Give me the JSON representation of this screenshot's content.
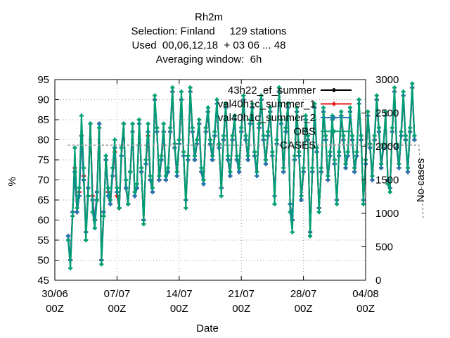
{
  "chart_data": {
    "type": "line",
    "title": "Rh2m",
    "subtitle_lines": [
      "Selection: Finland     129 stations",
      "Used  00,06,12,18  + 03 06 ... 48",
      "Averaging window:  6h"
    ],
    "xlabel": "Date",
    "ylabel": "%",
    "y2label": "No cases",
    "ylim": [
      45,
      95
    ],
    "y_ticks": [
      45,
      50,
      55,
      60,
      65,
      70,
      75,
      80,
      85,
      90,
      95
    ],
    "y2lim": [
      0,
      3000
    ],
    "y2_ticks": [
      0,
      500,
      1000,
      1500,
      2000,
      2500,
      3000
    ],
    "xlim": [
      "2023-06-30 00:00",
      "2023-08-04 00:00"
    ],
    "x_ticks": [
      {
        "label": "30/06",
        "sub": "00Z"
      },
      {
        "label": "07/07",
        "sub": "00Z"
      },
      {
        "label": "14/07",
        "sub": "00Z"
      },
      {
        "label": "21/07",
        "sub": "00Z"
      },
      {
        "label": "28/07",
        "sub": "00Z"
      },
      {
        "label": "04/08",
        "sub": "00Z"
      }
    ],
    "x_start": "2023-07-01 12:00",
    "x_step_hours": 6,
    "legend_position": "top-right",
    "grid": true,
    "series": [
      {
        "name": "43h22_ef_summer",
        "color": "#000000",
        "values": [
          56,
          50,
          62,
          72,
          62,
          66,
          81,
          70,
          57,
          68,
          84,
          65,
          60,
          67,
          84,
          50,
          62,
          75,
          66,
          64,
          71,
          78,
          67,
          63,
          76,
          84,
          68,
          64,
          72,
          82,
          66,
          68,
          84,
          72,
          60,
          74,
          82,
          70,
          67,
          90,
          82,
          70,
          75,
          82,
          70,
          72,
          82,
          92,
          78,
          71,
          79,
          90,
          76,
          65,
          75,
          92,
          82,
          75,
          79,
          84,
          72,
          69,
          82,
          87,
          79,
          75,
          81,
          89,
          78,
          68,
          80,
          88,
          75,
          71,
          80,
          85,
          75,
          72,
          82,
          90,
          80,
          75,
          84,
          88,
          76,
          71,
          83,
          90,
          80,
          74,
          81,
          87,
          76,
          66,
          79,
          92,
          84,
          72,
          82,
          88,
          64,
          60,
          75,
          87,
          76,
          65,
          72,
          85,
          80,
          57,
          72,
          88,
          77,
          63,
          72,
          87,
          80,
          70,
          76,
          85,
          74,
          65,
          76,
          86,
          80,
          73,
          76,
          87,
          80,
          72,
          76,
          89,
          80,
          65,
          74,
          86,
          78,
          70,
          80,
          90,
          82,
          73,
          78,
          86,
          70,
          68,
          82,
          92,
          78,
          73,
          81,
          91,
          80,
          72,
          82,
          93,
          80
        ]
      },
      {
        "name": "val40h1c_summer_1",
        "color": "#e41a1c",
        "values": [
          56,
          50,
          62,
          73,
          62,
          67,
          81,
          71,
          57,
          68,
          84,
          66,
          60,
          67,
          84,
          50,
          62,
          75,
          67,
          64,
          71,
          77,
          66,
          63,
          76,
          84,
          68,
          64,
          72,
          82,
          66,
          68,
          84,
          72,
          60,
          74,
          81,
          70,
          67,
          90,
          82,
          70,
          75,
          82,
          70,
          72,
          82,
          92,
          78,
          71,
          79,
          90,
          76,
          65,
          75,
          92,
          82,
          75,
          79,
          84,
          72,
          69,
          82,
          87,
          79,
          75,
          81,
          89,
          78,
          68,
          80,
          88,
          75,
          71,
          80,
          85,
          75,
          72,
          82,
          90,
          80,
          75,
          84,
          88,
          76,
          71,
          83,
          90,
          80,
          74,
          81,
          87,
          76,
          66,
          79,
          92,
          84,
          72,
          82,
          88,
          64,
          60,
          75,
          87,
          76,
          65,
          72,
          85,
          80,
          57,
          72,
          88,
          77,
          63,
          72,
          87,
          80,
          70,
          76,
          85,
          74,
          65,
          76,
          86,
          80,
          73,
          76,
          87,
          80,
          72,
          76,
          89,
          80,
          65,
          74,
          86,
          78,
          70,
          80,
          90,
          82,
          73,
          78,
          86,
          70,
          68,
          82,
          92,
          78,
          73,
          81,
          91,
          80,
          72,
          82,
          93,
          80
        ]
      },
      {
        "name": "val40h1c_summer_2",
        "color": "#1f78b4",
        "values": [
          56,
          50,
          62,
          72,
          62,
          66,
          81,
          70,
          57,
          68,
          84,
          65,
          60,
          67,
          84,
          50,
          62,
          75,
          66,
          64,
          71,
          78,
          67,
          63,
          76,
          84,
          68,
          64,
          72,
          82,
          66,
          68,
          84,
          72,
          60,
          74,
          82,
          70,
          67,
          90,
          82,
          70,
          75,
          82,
          70,
          72,
          82,
          92,
          78,
          71,
          79,
          90,
          76,
          65,
          75,
          92,
          82,
          75,
          79,
          84,
          72,
          69,
          82,
          87,
          79,
          75,
          81,
          89,
          78,
          68,
          80,
          88,
          75,
          71,
          80,
          85,
          75,
          72,
          82,
          90,
          80,
          75,
          84,
          88,
          76,
          71,
          83,
          90,
          80,
          74,
          81,
          87,
          76,
          66,
          79,
          92,
          84,
          72,
          82,
          88,
          64,
          60,
          75,
          87,
          76,
          65,
          72,
          85,
          80,
          57,
          72,
          88,
          77,
          63,
          72,
          87,
          80,
          70,
          76,
          85,
          74,
          65,
          76,
          86,
          80,
          73,
          76,
          87,
          80,
          72,
          76,
          89,
          80,
          65,
          74,
          86,
          78,
          70,
          80,
          90,
          82,
          73,
          78,
          86,
          70,
          68,
          82,
          92,
          78,
          73,
          81,
          91,
          80,
          72,
          82,
          93,
          80
        ]
      },
      {
        "name": "OBS",
        "color": "#009e73",
        "values": [
          55,
          48,
          61,
          78,
          63,
          68,
          86,
          73,
          55,
          66,
          84,
          62,
          58,
          65,
          83,
          49,
          61,
          76,
          68,
          65,
          73,
          80,
          68,
          63,
          78,
          84,
          70,
          64,
          72,
          84,
          67,
          69,
          85,
          73,
          59,
          75,
          84,
          71,
          68,
          91,
          83,
          71,
          76,
          84,
          71,
          73,
          83,
          93,
          79,
          72,
          80,
          92,
          77,
          63,
          76,
          93,
          83,
          76,
          80,
          85,
          73,
          70,
          83,
          88,
          80,
          76,
          82,
          90,
          79,
          66,
          81,
          89,
          76,
          72,
          81,
          86,
          76,
          73,
          83,
          91,
          81,
          76,
          85,
          89,
          77,
          72,
          84,
          91,
          81,
          75,
          82,
          88,
          77,
          64,
          80,
          93,
          85,
          73,
          83,
          89,
          62,
          57,
          76,
          88,
          77,
          66,
          73,
          86,
          81,
          56,
          73,
          89,
          78,
          62,
          73,
          88,
          81,
          71,
          77,
          86,
          75,
          64,
          77,
          87,
          81,
          74,
          77,
          88,
          81,
          73,
          77,
          90,
          81,
          64,
          75,
          87,
          79,
          71,
          81,
          91,
          83,
          74,
          79,
          87,
          69,
          67,
          83,
          93,
          79,
          74,
          82,
          92,
          81,
          73,
          83,
          94,
          81
        ]
      },
      {
        "name": "CASES",
        "color": "#999999",
        "axis": "y2",
        "dashed": true,
        "values": [
          2020,
          2020,
          2020,
          2020,
          2020,
          2020,
          2020,
          2020,
          2020,
          2020,
          2020,
          2020,
          2020,
          2020,
          2020,
          2020,
          2020,
          2020,
          2020,
          2020,
          2020,
          2020,
          2020,
          2020,
          2020,
          2020,
          2020,
          2020,
          2020,
          2020,
          2020,
          2020,
          2020,
          2020,
          2020,
          2020,
          2020,
          2020,
          2020,
          2020,
          2020,
          2020,
          2020,
          2020,
          2020,
          2020,
          2020,
          2020,
          2020,
          2020,
          2020,
          2020,
          2020,
          2020,
          2020,
          2020,
          2020,
          2020,
          2020,
          2020,
          2020,
          2020,
          2020,
          2020,
          2020,
          2020,
          2020,
          2020,
          2020,
          2020,
          2020,
          2020,
          2020,
          2020,
          2020,
          2020,
          2020,
          2020,
          2020,
          2020,
          2020,
          2020,
          2020,
          2020,
          2020,
          2020,
          2020,
          2020,
          2020,
          2020,
          2020,
          2020,
          2020,
          2020,
          2020,
          2020,
          2020,
          2020,
          2020,
          2020,
          2020,
          2020,
          2020,
          2020,
          2020,
          2020,
          2020,
          2020,
          2020,
          2020,
          2020,
          2020,
          2020,
          2020,
          2020,
          2020,
          2020,
          2020,
          2020,
          2020,
          2020,
          2020,
          2020,
          2020,
          2020,
          2020,
          2020,
          2020,
          2020,
          2020,
          2020,
          2020,
          2020,
          2020,
          2020,
          2020,
          2020,
          2020,
          2020,
          2020,
          2020,
          2020,
          2020,
          2020,
          2020,
          2020,
          2020,
          2020,
          2020,
          2020,
          2020,
          2020,
          2020,
          2020,
          2020,
          2020,
          2020,
          2020,
          2020,
          1500,
          900
        ]
      }
    ],
    "legend_labels": [
      "43h22_ef_summer",
      "val40h1c_summer_1",
      "val40h1c_summer_2",
      "OBS",
      "CASES"
    ]
  }
}
